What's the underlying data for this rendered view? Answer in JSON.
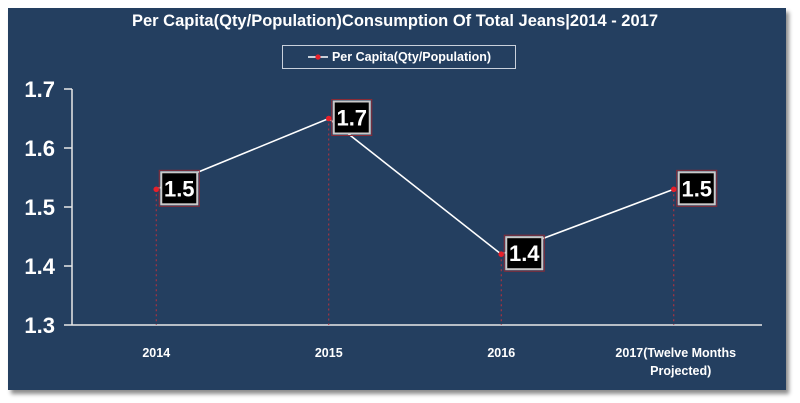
{
  "chart_data": {
    "type": "line",
    "title": "Per Capita(Qty/Population)Consumption Of Total Jeans|2014 - 2017",
    "xlabel": "",
    "ylabel": "",
    "categories": [
      "2014",
      "2015",
      "2016",
      "2017(Twelve Months Projected)"
    ],
    "category_lines": [
      [
        "2014"
      ],
      [
        "2015"
      ],
      [
        "2016"
      ],
      [
        "2017(Twelve Months",
        "Projected)"
      ]
    ],
    "series": [
      {
        "name": "Per Capita(Qty/Population)",
        "values": [
          1.53,
          1.65,
          1.42,
          1.53
        ],
        "data_labels": [
          "1.5",
          "1.7",
          "1.4",
          "1.5"
        ]
      }
    ],
    "ylim": [
      1.3,
      1.7
    ],
    "yticks": [
      1.3,
      1.4,
      1.5,
      1.6,
      1.7
    ],
    "ytick_labels": [
      "1.3",
      "1.4",
      "1.5",
      "1.6",
      "1.7"
    ],
    "grid": false,
    "legend_position": "top-center",
    "drop_lines": true
  },
  "colors": {
    "background": "#243f60",
    "line": "#ffffff",
    "marker": "#e8202a",
    "drop_line": "#c0303a",
    "label_box": "#000000",
    "label_border": "#c9c9c9",
    "label_outer_border": "#8b2a35",
    "text": "#ffffff"
  }
}
